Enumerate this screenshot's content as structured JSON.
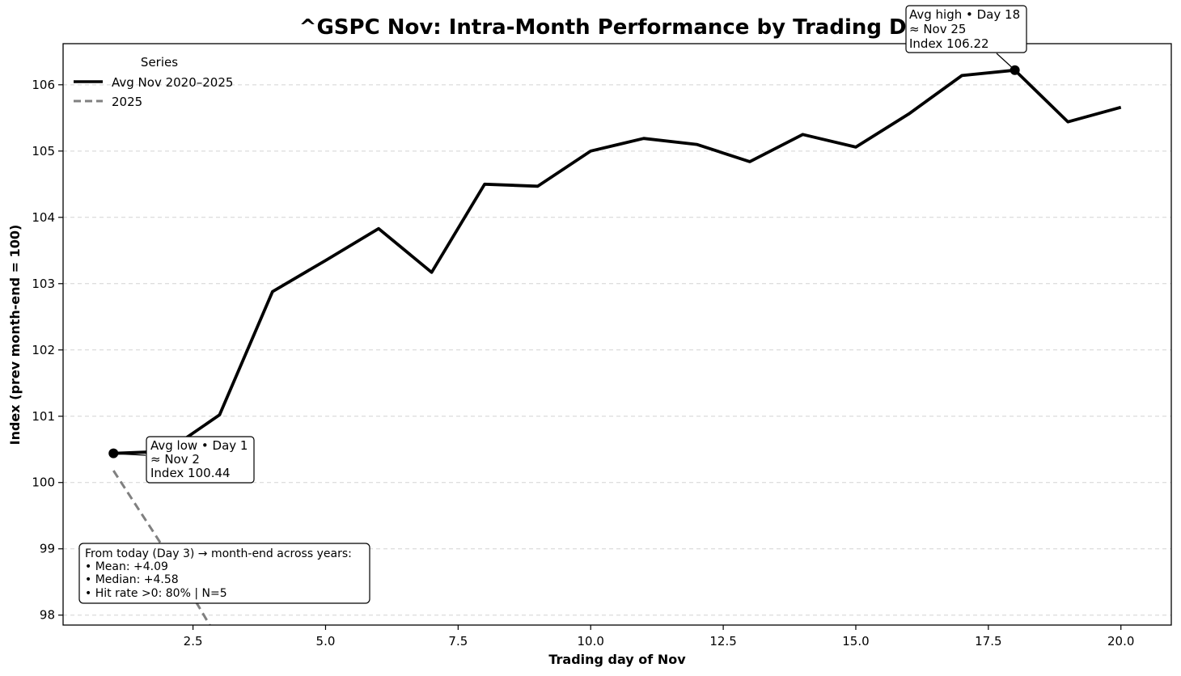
{
  "chart_data": {
    "type": "line",
    "title": "^GSPC Nov: Intra-Month Performance by Trading Day",
    "xlabel": "Trading day of Nov",
    "ylabel": "Index (prev month-end = 100)",
    "xlim": [
      0.05,
      20.95
    ],
    "ylim": [
      97.85,
      106.62
    ],
    "x_ticks": [
      2.5,
      5.0,
      7.5,
      10.0,
      12.5,
      15.0,
      17.5,
      20.0
    ],
    "x_tick_labels": [
      "2.5",
      "5.0",
      "7.5",
      "10.0",
      "12.5",
      "15.0",
      "17.5",
      "20.0"
    ],
    "y_ticks": [
      98,
      99,
      100,
      101,
      102,
      103,
      104,
      105,
      106
    ],
    "y_tick_labels": [
      "98",
      "99",
      "100",
      "101",
      "102",
      "103",
      "104",
      "105",
      "106"
    ],
    "grid": "y-dashed",
    "legend": {
      "title": "Series",
      "position": "top-left",
      "entries": [
        "Avg Nov 2020–2025",
        "2025"
      ]
    },
    "series": [
      {
        "name": "Avg Nov 2020–2025",
        "style": "solid",
        "color": "#000000",
        "x": [
          1,
          2,
          3,
          4,
          5,
          6,
          7,
          8,
          9,
          10,
          11,
          12,
          13,
          14,
          15,
          16,
          17,
          18,
          19,
          20
        ],
        "y": [
          100.44,
          100.47,
          101.02,
          102.88,
          103.35,
          103.83,
          103.17,
          104.5,
          104.47,
          105.0,
          105.19,
          105.1,
          104.84,
          105.25,
          105.06,
          105.56,
          106.14,
          106.22,
          105.44,
          105.66
        ]
      },
      {
        "name": "2025",
        "style": "dashed",
        "color": "#808080",
        "x": [
          1,
          2,
          3
        ],
        "y": [
          100.18,
          98.95,
          97.6
        ]
      }
    ],
    "markers": [
      {
        "x": 1,
        "y": 100.44
      },
      {
        "x": 18,
        "y": 106.22
      }
    ],
    "annotations": {
      "low": {
        "lines": [
          "Avg low • Day 1",
          "≈ Nov 2",
          "Index 100.44"
        ],
        "x": 1,
        "y": 100.44
      },
      "high": {
        "lines": [
          "Avg high • Day 18",
          "≈ Nov 25",
          "Index 106.22"
        ],
        "x": 18,
        "y": 106.22
      },
      "stats": {
        "lines": [
          "From today (Day 3) → month-end across years:",
          "• Mean: +4.09",
          "• Median: +4.58",
          "• Hit rate >0: 80%  | N=5"
        ]
      }
    }
  }
}
